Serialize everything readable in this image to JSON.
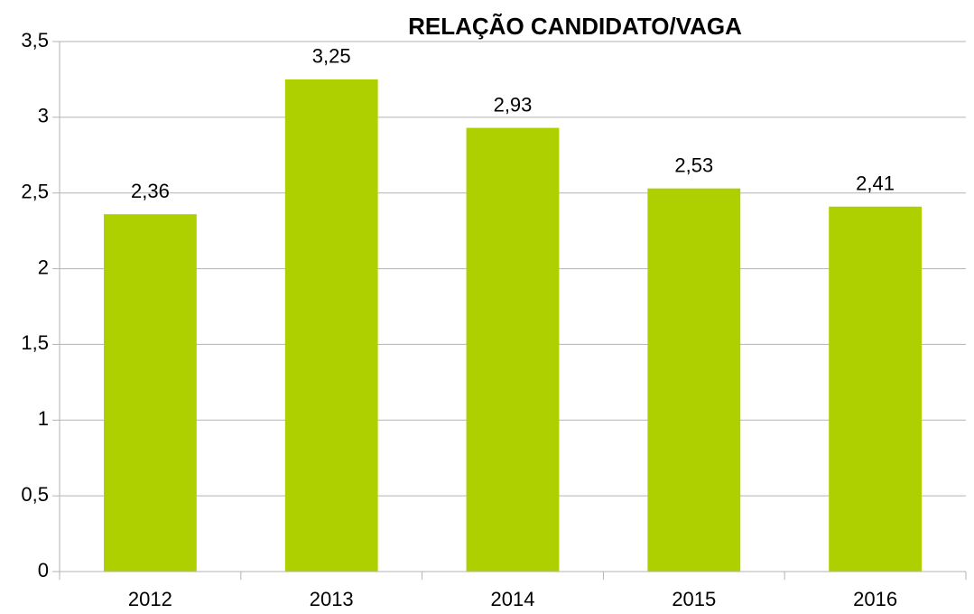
{
  "chart_data": {
    "type": "bar",
    "title": "RELAÇÃO CANDIDATO/VAGA",
    "categories": [
      "2012",
      "2013",
      "2014",
      "2015",
      "2016"
    ],
    "values": [
      2.36,
      3.25,
      2.93,
      2.53,
      2.41
    ],
    "value_labels": [
      "2,36",
      "3,25",
      "2,93",
      "2,53",
      "2,41"
    ],
    "color": "#afd000",
    "ylim": [
      0,
      3.5
    ],
    "yticks": [
      0,
      {
        "value": 0.5,
        "label": "0,5"
      },
      1,
      {
        "value": 1.5,
        "label": "1,5"
      },
      2,
      {
        "value": 2.5,
        "label": "2,5"
      },
      3,
      {
        "value": 3.5,
        "label": "3,5"
      }
    ],
    "grid": true
  }
}
